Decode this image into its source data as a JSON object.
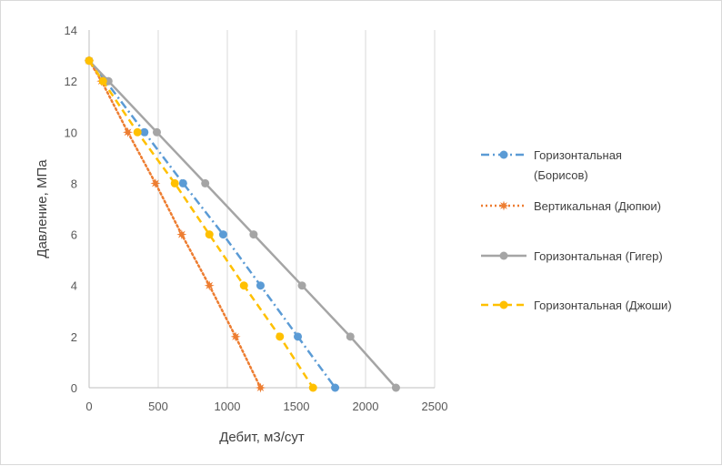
{
  "chart_data": {
    "type": "line",
    "title": "",
    "xlabel": "Дебит, м3/сут",
    "ylabel": "Давление, МПа",
    "xlim": [
      0,
      2500
    ],
    "ylim": [
      0,
      14
    ],
    "xticks": [
      0,
      500,
      1000,
      1500,
      2000,
      2500
    ],
    "yticks": [
      0,
      2,
      4,
      6,
      8,
      10,
      12,
      14
    ],
    "grid": "vertical",
    "legend_position": "right",
    "series": [
      {
        "name_lines": [
          "Горизонтальная",
          "(Борисов)"
        ],
        "color": "#5b9bd5",
        "line_style": "dash-dot",
        "marker": "circle",
        "x": [
          0,
          120,
          400,
          680,
          970,
          1240,
          1510,
          1780
        ],
        "y": [
          12.8,
          12,
          10,
          8,
          6,
          4,
          2,
          0
        ]
      },
      {
        "name_lines": [
          "Вертикальная (Дюпюи)"
        ],
        "color": "#ed7d31",
        "line_style": "dotted",
        "marker": "star",
        "x": [
          0,
          90,
          280,
          480,
          670,
          870,
          1060,
          1240
        ],
        "y": [
          12.8,
          12,
          10,
          8,
          6,
          4,
          2,
          0
        ]
      },
      {
        "name_lines": [
          "Горизонтальная (Гигер)"
        ],
        "color": "#a5a5a5",
        "line_style": "solid",
        "marker": "circle",
        "x": [
          0,
          140,
          490,
          840,
          1190,
          1540,
          1890,
          2220
        ],
        "y": [
          12.8,
          12,
          10,
          8,
          6,
          4,
          2,
          0
        ]
      },
      {
        "name_lines": [
          "Горизонтальная (Джоши)"
        ],
        "color": "#ffc000",
        "line_style": "dashed",
        "marker": "circle",
        "x": [
          0,
          100,
          350,
          620,
          870,
          1120,
          1380,
          1620
        ],
        "y": [
          12.8,
          12,
          10,
          8,
          6,
          4,
          2,
          0
        ]
      }
    ]
  }
}
